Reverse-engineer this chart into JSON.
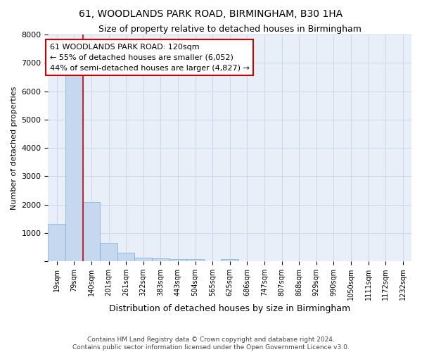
{
  "title1": "61, WOODLANDS PARK ROAD, BIRMINGHAM, B30 1HA",
  "title2": "Size of property relative to detached houses in Birmingham",
  "xlabel": "Distribution of detached houses by size in Birmingham",
  "ylabel": "Number of detached properties",
  "bar_color": "#c5d8f0",
  "bar_edge_color": "#7badd4",
  "property_line_color": "#cc0000",
  "annotation_text": "61 WOODLANDS PARK ROAD: 120sqm\n← 55% of detached houses are smaller (6,052)\n44% of semi-detached houses are larger (4,827) →",
  "categories": [
    "19sqm",
    "79sqm",
    "140sqm",
    "201sqm",
    "261sqm",
    "322sqm",
    "383sqm",
    "443sqm",
    "504sqm",
    "565sqm",
    "625sqm",
    "686sqm",
    "747sqm",
    "807sqm",
    "868sqm",
    "929sqm",
    "990sqm",
    "1050sqm",
    "1111sqm",
    "1172sqm",
    "1232sqm"
  ],
  "values": [
    1320,
    6600,
    2100,
    650,
    300,
    140,
    100,
    80,
    80,
    0,
    80,
    0,
    0,
    0,
    0,
    0,
    0,
    0,
    0,
    0,
    0
  ],
  "ylim": [
    0,
    8000
  ],
  "yticks": [
    0,
    1000,
    2000,
    3000,
    4000,
    5000,
    6000,
    7000,
    8000
  ],
  "property_line_x": 2.0,
  "footer1": "Contains HM Land Registry data © Crown copyright and database right 2024.",
  "footer2": "Contains public sector information licensed under the Open Government Licence v3.0.",
  "background_color": "#ffffff",
  "axes_bg_color": "#e8eff8",
  "grid_color": "#c8d8e8"
}
